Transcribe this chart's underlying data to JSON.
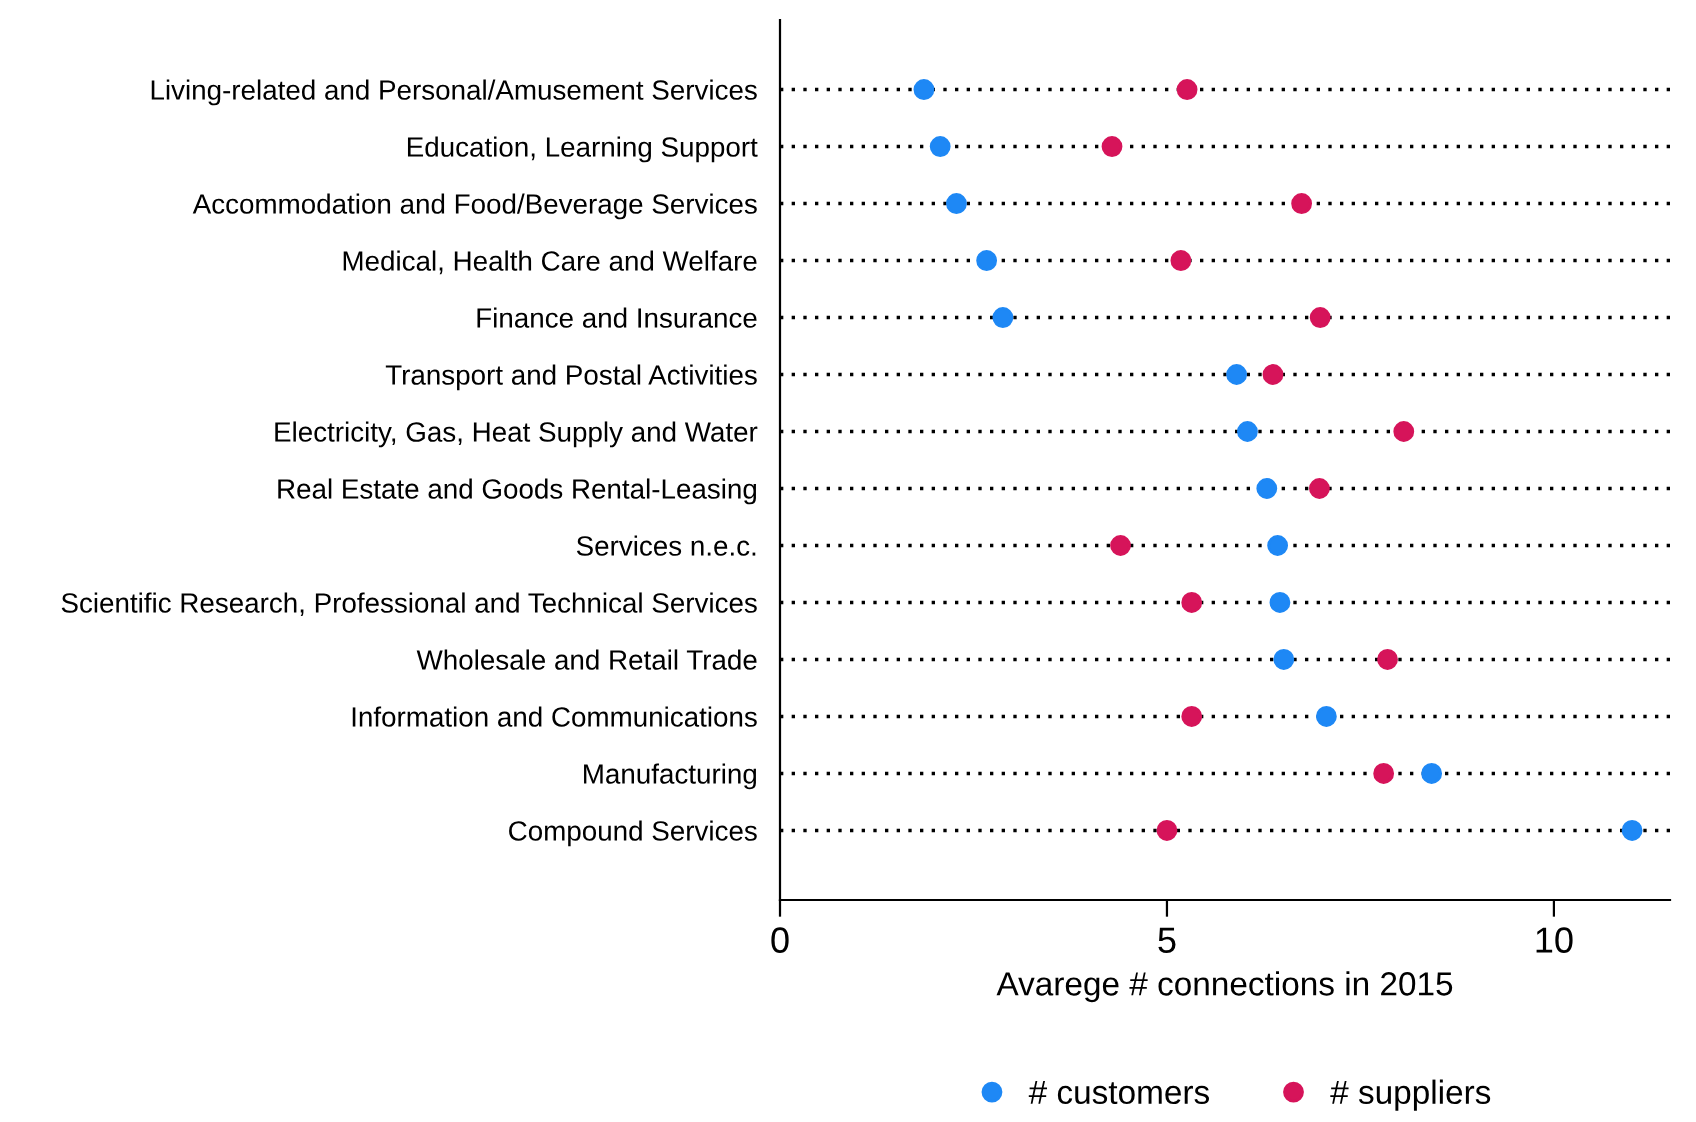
{
  "chart_data": {
    "type": "scatter",
    "orientation": "horizontal",
    "xlabel": "Avarege # connections in 2015",
    "categories": [
      "Living-related and Personal/Amusement Services",
      "Education, Learning Support",
      "Accommodation and Food/Beverage Services",
      "Medical, Health Care and Welfare",
      "Finance and Insurance",
      "Transport and Postal Activities",
      "Electricity, Gas, Heat Supply and Water",
      "Real Estate and Goods Rental-Leasing",
      "Services n.e.c.",
      "Scientific Research, Professional and Technical Services",
      "Wholesale and Retail Trade",
      "Information and Communications",
      "Manufacturing",
      "Compound Services"
    ],
    "series": [
      {
        "name": "# customers",
        "color": "#1e88f5",
        "values": [
          1.86,
          2.07,
          2.28,
          2.67,
          2.88,
          5.9,
          6.04,
          6.29,
          6.43,
          6.46,
          6.51,
          7.06,
          8.42,
          11.01
        ]
      },
      {
        "name": "# suppliers",
        "color": "#d6145a",
        "values": [
          5.26,
          4.29,
          6.74,
          5.18,
          6.98,
          6.37,
          8.06,
          6.97,
          4.4,
          5.32,
          7.85,
          5.32,
          7.8,
          5.0
        ]
      }
    ],
    "xlim": [
      0,
      11.5
    ],
    "xticks": [
      0,
      5,
      10
    ],
    "grid": "y",
    "legend": "bottom",
    "marker": "circle"
  }
}
